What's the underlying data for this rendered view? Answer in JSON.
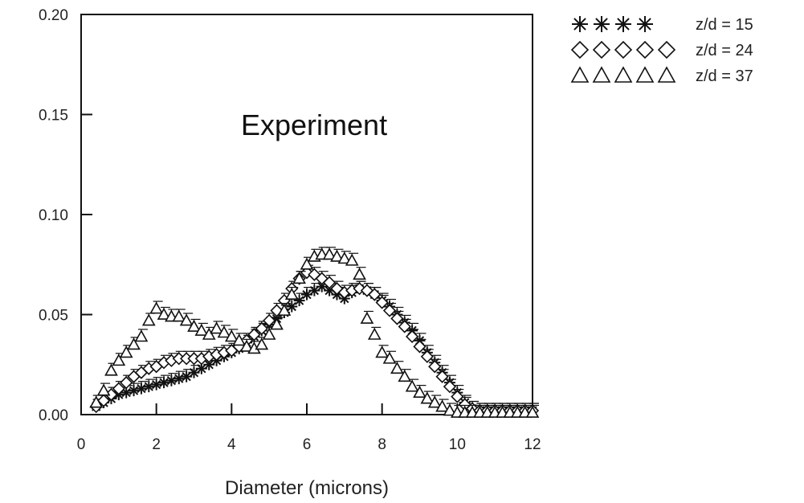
{
  "chart_data": {
    "type": "scatter",
    "title": "",
    "annotation": "Experiment",
    "xlabel": "Diameter (microns)",
    "ylabel": "",
    "xlim": [
      0,
      12
    ],
    "ylim": [
      0,
      0.2
    ],
    "xticks": [
      0,
      2,
      4,
      6,
      8,
      10,
      12
    ],
    "xtick_labels": [
      "0",
      "2",
      "4",
      "6",
      "8",
      "10",
      "12"
    ],
    "yticks": [
      0,
      0.05,
      0.1,
      0.15,
      0.2
    ],
    "ytick_labels": [
      "0.00",
      "0.05",
      "0.10",
      "0.15",
      "0.20"
    ],
    "grid": false,
    "legend_position": "outside-top-right",
    "series": [
      {
        "name": "z/d = 15",
        "legend_symbols": "✱✱✱✱",
        "marker": "asterisk",
        "x": [
          0.4,
          0.6,
          0.8,
          1.0,
          1.2,
          1.4,
          1.6,
          1.8,
          2.0,
          2.2,
          2.4,
          2.6,
          2.8,
          3.0,
          3.2,
          3.4,
          3.6,
          3.8,
          4.0,
          4.2,
          4.4,
          4.6,
          4.8,
          5.0,
          5.2,
          5.4,
          5.6,
          5.8,
          6.0,
          6.2,
          6.4,
          6.6,
          6.8,
          7.0,
          7.2,
          7.4,
          7.6,
          7.8,
          8.0,
          8.2,
          8.4,
          8.6,
          8.8,
          9.0,
          9.2,
          9.4,
          9.6,
          9.8,
          10.0,
          10.2,
          10.4,
          10.6,
          10.8,
          11.0,
          11.2,
          11.4,
          11.6,
          11.8,
          12.0
        ],
        "y": [
          0.004,
          0.006,
          0.008,
          0.01,
          0.011,
          0.012,
          0.013,
          0.014,
          0.015,
          0.016,
          0.017,
          0.018,
          0.019,
          0.021,
          0.023,
          0.025,
          0.027,
          0.029,
          0.031,
          0.033,
          0.036,
          0.039,
          0.042,
          0.045,
          0.048,
          0.051,
          0.054,
          0.057,
          0.06,
          0.062,
          0.064,
          0.062,
          0.06,
          0.058,
          0.061,
          0.063,
          0.062,
          0.06,
          0.057,
          0.054,
          0.05,
          0.046,
          0.042,
          0.037,
          0.031,
          0.026,
          0.021,
          0.016,
          0.011,
          0.006,
          0.003,
          0.002,
          0.002,
          0.002,
          0.002,
          0.002,
          0.002,
          0.002,
          0.002
        ]
      },
      {
        "name": "z/d = 24",
        "legend_symbols": "◇◇◇◇◇",
        "marker": "diamond",
        "x": [
          0.4,
          0.6,
          0.8,
          1.0,
          1.2,
          1.4,
          1.6,
          1.8,
          2.0,
          2.2,
          2.4,
          2.6,
          2.8,
          3.0,
          3.2,
          3.4,
          3.6,
          3.8,
          4.0,
          4.2,
          4.4,
          4.6,
          4.8,
          5.0,
          5.2,
          5.4,
          5.6,
          5.8,
          6.0,
          6.2,
          6.4,
          6.6,
          6.8,
          7.0,
          7.2,
          7.4,
          7.6,
          7.8,
          8.0,
          8.2,
          8.4,
          8.6,
          8.8,
          9.0,
          9.2,
          9.4,
          9.6,
          9.8,
          10.0,
          10.2,
          10.4,
          10.6,
          10.8,
          11.0,
          11.2,
          11.4,
          11.6,
          11.8,
          12.0
        ],
        "y": [
          0.004,
          0.007,
          0.01,
          0.013,
          0.016,
          0.019,
          0.021,
          0.023,
          0.024,
          0.026,
          0.027,
          0.028,
          0.028,
          0.028,
          0.028,
          0.029,
          0.03,
          0.031,
          0.032,
          0.034,
          0.037,
          0.04,
          0.043,
          0.047,
          0.052,
          0.057,
          0.063,
          0.068,
          0.071,
          0.07,
          0.068,
          0.066,
          0.063,
          0.061,
          0.062,
          0.063,
          0.062,
          0.06,
          0.056,
          0.052,
          0.048,
          0.044,
          0.039,
          0.034,
          0.029,
          0.024,
          0.019,
          0.014,
          0.009,
          0.005,
          0.003,
          0.002,
          0.002,
          0.002,
          0.002,
          0.002,
          0.002,
          0.002,
          0.002
        ]
      },
      {
        "name": "z/d = 37",
        "legend_symbols": "△△△△△",
        "marker": "triangle",
        "x": [
          0.4,
          0.6,
          0.8,
          1.0,
          1.2,
          1.4,
          1.6,
          1.8,
          2.0,
          2.2,
          2.4,
          2.6,
          2.8,
          3.0,
          3.2,
          3.4,
          3.6,
          3.8,
          4.0,
          4.2,
          4.4,
          4.6,
          4.8,
          5.0,
          5.2,
          5.4,
          5.6,
          5.8,
          6.0,
          6.2,
          6.4,
          6.6,
          6.8,
          7.0,
          7.2,
          7.4,
          7.6,
          7.8,
          8.0,
          8.2,
          8.4,
          8.6,
          8.8,
          9.0,
          9.2,
          9.4,
          9.6,
          9.8,
          10.0,
          10.2,
          10.4,
          10.6,
          10.8,
          11.0,
          11.2,
          11.4,
          11.6,
          11.8,
          12.0
        ],
        "y": [
          0.006,
          0.012,
          0.022,
          0.027,
          0.031,
          0.035,
          0.039,
          0.047,
          0.053,
          0.05,
          0.049,
          0.049,
          0.047,
          0.044,
          0.042,
          0.04,
          0.043,
          0.041,
          0.039,
          0.037,
          0.034,
          0.033,
          0.035,
          0.04,
          0.045,
          0.052,
          0.06,
          0.068,
          0.075,
          0.079,
          0.08,
          0.08,
          0.079,
          0.078,
          0.077,
          0.07,
          0.048,
          0.04,
          0.031,
          0.028,
          0.023,
          0.019,
          0.014,
          0.011,
          0.008,
          0.006,
          0.004,
          0.002,
          0.001,
          0.001,
          0.001,
          0.001,
          0.001,
          0.001,
          0.001,
          0.001,
          0.001,
          0.001,
          0.001
        ]
      }
    ]
  }
}
